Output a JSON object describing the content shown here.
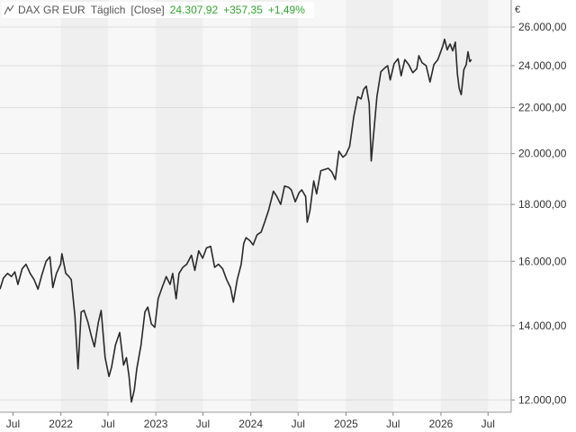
{
  "legend": {
    "name": "DAX GR EUR",
    "interval": "Täglich",
    "mode": "[Close]",
    "last": "24.307,92",
    "change": "+357,35",
    "change_pct": "+1,49%",
    "change_color": "#2ea52e"
  },
  "chart_data": {
    "type": "line",
    "title": "DAX GR EUR",
    "yunit": "€",
    "yscale": "log",
    "ylim": [
      11700,
      27500
    ],
    "xlim": [
      "2021-05-12",
      "2026-09-28"
    ],
    "grid": true,
    "line_color": "#2a2a2a",
    "y_ticks": [
      {
        "value": 12000,
        "label": "12.000,00"
      },
      {
        "value": 14000,
        "label": "14.000,00"
      },
      {
        "value": 16000,
        "label": "16.000,00"
      },
      {
        "value": 18000,
        "label": "18.000,00"
      },
      {
        "value": 20000,
        "label": "20.000,00"
      },
      {
        "value": 22000,
        "label": "22.000,00"
      },
      {
        "value": 24000,
        "label": "24.000,00"
      },
      {
        "value": 26000,
        "label": "26.000,00"
      }
    ],
    "x_ticks": [
      {
        "date": "2021-07-01",
        "label": "Jul"
      },
      {
        "date": "2022-01-01",
        "label": "2022"
      },
      {
        "date": "2022-07-01",
        "label": "Jul"
      },
      {
        "date": "2023-01-01",
        "label": "2023"
      },
      {
        "date": "2023-07-01",
        "label": "Jul"
      },
      {
        "date": "2024-01-01",
        "label": "2024"
      },
      {
        "date": "2024-07-01",
        "label": "Jul"
      },
      {
        "date": "2025-01-01",
        "label": "2025"
      },
      {
        "date": "2025-07-01",
        "label": "Jul"
      },
      {
        "date": "2026-01-01",
        "label": "2026"
      },
      {
        "date": "2026-07-01",
        "label": "Jul"
      }
    ],
    "series": [
      {
        "points": [
          [
            "2021-05-12",
            15100
          ],
          [
            "2021-05-25",
            15450
          ],
          [
            "2021-06-10",
            15600
          ],
          [
            "2021-06-25",
            15500
          ],
          [
            "2021-07-08",
            15650
          ],
          [
            "2021-07-20",
            15250
          ],
          [
            "2021-08-05",
            15750
          ],
          [
            "2021-08-20",
            15900
          ],
          [
            "2021-09-05",
            15600
          ],
          [
            "2021-09-20",
            15400
          ],
          [
            "2021-10-05",
            15100
          ],
          [
            "2021-10-20",
            15550
          ],
          [
            "2021-11-05",
            16000
          ],
          [
            "2021-11-20",
            16150
          ],
          [
            "2021-12-01",
            15150
          ],
          [
            "2021-12-15",
            15600
          ],
          [
            "2021-12-31",
            15900
          ],
          [
            "2022-01-05",
            16250
          ],
          [
            "2022-01-20",
            15600
          ],
          [
            "2022-02-01",
            15500
          ],
          [
            "2022-02-10",
            15400
          ],
          [
            "2022-02-24",
            14300
          ],
          [
            "2022-03-08",
            12800
          ],
          [
            "2022-03-20",
            14400
          ],
          [
            "2022-03-31",
            14450
          ],
          [
            "2022-04-15",
            14100
          ],
          [
            "2022-04-28",
            13700
          ],
          [
            "2022-05-10",
            13400
          ],
          [
            "2022-05-25",
            14100
          ],
          [
            "2022-06-05",
            14450
          ],
          [
            "2022-06-20",
            13100
          ],
          [
            "2022-07-05",
            12600
          ],
          [
            "2022-07-15",
            12850
          ],
          [
            "2022-07-30",
            13450
          ],
          [
            "2022-08-15",
            13800
          ],
          [
            "2022-08-30",
            12900
          ],
          [
            "2022-09-10",
            13100
          ],
          [
            "2022-09-20",
            12600
          ],
          [
            "2022-09-29",
            11950
          ],
          [
            "2022-10-10",
            12250
          ],
          [
            "2022-10-20",
            12800
          ],
          [
            "2022-11-05",
            13450
          ],
          [
            "2022-11-20",
            14400
          ],
          [
            "2022-12-01",
            14550
          ],
          [
            "2022-12-15",
            14050
          ],
          [
            "2022-12-28",
            13950
          ],
          [
            "2023-01-10",
            14800
          ],
          [
            "2023-01-25",
            15150
          ],
          [
            "2023-02-10",
            15500
          ],
          [
            "2023-02-25",
            15250
          ],
          [
            "2023-03-07",
            15600
          ],
          [
            "2023-03-20",
            14800
          ],
          [
            "2023-03-31",
            15600
          ],
          [
            "2023-04-15",
            15800
          ],
          [
            "2023-04-30",
            15900
          ],
          [
            "2023-05-18",
            16200
          ],
          [
            "2023-05-31",
            15700
          ],
          [
            "2023-06-15",
            16350
          ],
          [
            "2023-06-30",
            16100
          ],
          [
            "2023-07-15",
            16450
          ],
          [
            "2023-07-31",
            16500
          ],
          [
            "2023-08-15",
            15800
          ],
          [
            "2023-08-30",
            15900
          ],
          [
            "2023-09-15",
            15750
          ],
          [
            "2023-09-30",
            15400
          ],
          [
            "2023-10-15",
            15150
          ],
          [
            "2023-10-26",
            14700
          ],
          [
            "2023-11-10",
            15400
          ],
          [
            "2023-11-25",
            15900
          ],
          [
            "2023-12-05",
            16600
          ],
          [
            "2023-12-14",
            16800
          ],
          [
            "2023-12-28",
            16700
          ],
          [
            "2024-01-10",
            16550
          ],
          [
            "2024-01-25",
            16900
          ],
          [
            "2024-02-10",
            17000
          ],
          [
            "2024-02-25",
            17400
          ],
          [
            "2024-03-10",
            17800
          ],
          [
            "2024-03-28",
            18500
          ],
          [
            "2024-04-10",
            18300
          ],
          [
            "2024-04-25",
            18000
          ],
          [
            "2024-05-10",
            18700
          ],
          [
            "2024-05-25",
            18650
          ],
          [
            "2024-06-05",
            18550
          ],
          [
            "2024-06-20",
            18100
          ],
          [
            "2024-07-05",
            18450
          ],
          [
            "2024-07-15",
            18550
          ],
          [
            "2024-07-30",
            18300
          ],
          [
            "2024-08-05",
            17350
          ],
          [
            "2024-08-15",
            17750
          ],
          [
            "2024-08-30",
            18900
          ],
          [
            "2024-09-10",
            18400
          ],
          [
            "2024-09-26",
            19300
          ],
          [
            "2024-10-10",
            19350
          ],
          [
            "2024-10-25",
            19400
          ],
          [
            "2024-11-08",
            19250
          ],
          [
            "2024-11-21",
            18950
          ],
          [
            "2024-12-05",
            20100
          ],
          [
            "2024-12-20",
            19850
          ],
          [
            "2024-12-31",
            19950
          ],
          [
            "2025-01-15",
            20300
          ],
          [
            "2025-01-31",
            21600
          ],
          [
            "2025-02-15",
            22500
          ],
          [
            "2025-02-28",
            22400
          ],
          [
            "2025-03-10",
            22850
          ],
          [
            "2025-03-20",
            23000
          ],
          [
            "2025-03-31",
            22200
          ],
          [
            "2025-04-08",
            19700
          ],
          [
            "2025-04-20",
            21200
          ],
          [
            "2025-04-30",
            22500
          ],
          [
            "2025-05-15",
            23700
          ],
          [
            "2025-05-31",
            23900
          ],
          [
            "2025-06-10",
            24000
          ],
          [
            "2025-06-20",
            23300
          ],
          [
            "2025-07-05",
            24100
          ],
          [
            "2025-07-20",
            24350
          ],
          [
            "2025-08-01",
            23500
          ],
          [
            "2025-08-15",
            24300
          ],
          [
            "2025-08-30",
            24050
          ],
          [
            "2025-09-15",
            23650
          ],
          [
            "2025-09-30",
            23850
          ],
          [
            "2025-10-08",
            24500
          ],
          [
            "2025-10-20",
            24150
          ],
          [
            "2025-11-05",
            24000
          ],
          [
            "2025-11-20",
            23200
          ],
          [
            "2025-12-05",
            24050
          ],
          [
            "2025-12-20",
            24300
          ],
          [
            "2026-01-08",
            25000
          ],
          [
            "2026-01-15",
            25350
          ],
          [
            "2026-01-25",
            24800
          ],
          [
            "2026-02-05",
            25100
          ],
          [
            "2026-02-15",
            24750
          ],
          [
            "2026-02-25",
            25200
          ],
          [
            "2026-03-05",
            23600
          ],
          [
            "2026-03-12",
            22900
          ],
          [
            "2026-03-20",
            22600
          ],
          [
            "2026-03-30",
            23800
          ],
          [
            "2026-04-08",
            24050
          ],
          [
            "2026-04-15",
            24700
          ],
          [
            "2026-04-22",
            24200
          ],
          [
            "2026-04-28",
            24308
          ]
        ]
      }
    ]
  }
}
